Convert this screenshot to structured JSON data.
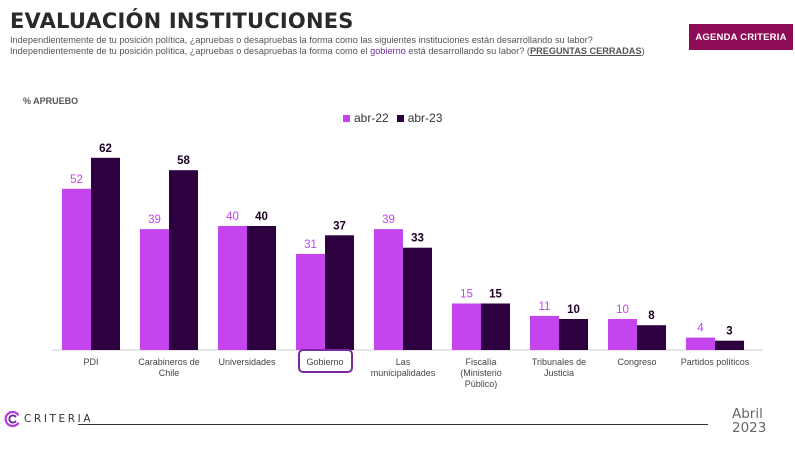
{
  "header": {
    "title": "EVALUACIÓN INSTITUCIONES",
    "subtitle_line1": "Independientemente de tu posición política, ¿apruebas o desapruebas la forma como las siguientes instituciones están desarrollando su labor?",
    "subtitle_line2_a": "Independientemente de tu posición política, ¿apruebas o desapruebas la forma como el ",
    "subtitle_line2_highlight": "gobierno",
    "subtitle_line2_b": " está desarrollando su labor? (",
    "subtitle_line2_link": "PREGUNTAS CERRADAS",
    "subtitle_line2_c": ")",
    "badge": "AGENDA CRITERIA"
  },
  "footer": {
    "logo_text": "CRITERIA",
    "date_month": "Abril",
    "date_year": "2023"
  },
  "colors": {
    "series1": "#c444ee",
    "series2": "#2d0040",
    "badge": "#8e0c55",
    "highlight_box": "#7a2aa0"
  },
  "chart_data": {
    "type": "bar",
    "ylabel": "% APRUEBO",
    "highlighted_category": "Gobierno",
    "categories": [
      [
        "PDI"
      ],
      [
        "Carabineros de",
        "Chile"
      ],
      [
        "Universidades"
      ],
      [
        "Gobierno"
      ],
      [
        "Las",
        "municipalidades"
      ],
      [
        "Fiscalía",
        "(Ministerio",
        "Público)"
      ],
      [
        "Tribunales de",
        "Justicia"
      ],
      [
        "Congreso"
      ],
      [
        "Partidos políticos"
      ]
    ],
    "series": [
      {
        "name": "abr-22",
        "values": [
          52,
          39,
          40,
          31,
          39,
          15,
          11,
          10,
          4
        ]
      },
      {
        "name": "abr-23",
        "values": [
          62,
          58,
          40,
          37,
          33,
          15,
          10,
          8,
          3
        ]
      }
    ],
    "ylim": [
      0,
      65
    ],
    "grid": false,
    "legend": "top-center"
  }
}
